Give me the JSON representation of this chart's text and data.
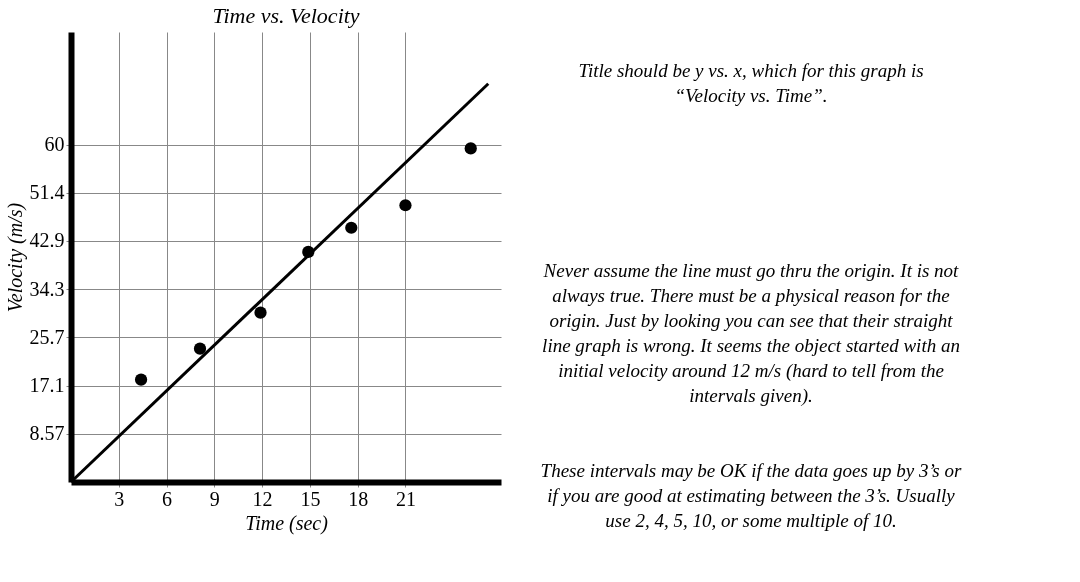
{
  "chart_data": {
    "type": "scatter",
    "title": "Time vs. Velocity",
    "xlabel": "Time (sec)",
    "ylabel": "Velocity (m/s)",
    "xlim": [
      0,
      27
    ],
    "ylim": [
      0,
      80
    ],
    "xticks": [
      3,
      6,
      9,
      12,
      15,
      18,
      21
    ],
    "yticks": [
      8.57,
      17.1,
      25.7,
      34.3,
      42.9,
      51.4,
      60
    ],
    "grid": true,
    "series": [
      {
        "color": "#000000",
        "marker": "circle",
        "x": [
          4.4,
          8.1,
          11.9,
          14.9,
          17.6,
          21.0,
          25.1
        ],
        "values": [
          18.2,
          23.7,
          30.1,
          40.9,
          45.2,
          49.2,
          59.3
        ]
      },
      {
        "type": "line",
        "color": "#000000",
        "line_style": "solid",
        "marker": "none",
        "x": [
          0,
          26.2
        ],
        "values": [
          0,
          70.8
        ]
      }
    ],
    "annotations": [
      "Title should be y vs. x, which for this graph is “Velocity vs. Time”.",
      "Never assume the line must go thru the origin.  It is not always true.  There must be a physical reason for the origin.  Just by looking you can see that their straight line graph is wrong.  It seems the object started with an initial velocity around 12 m/s (hard to tell from the intervals given).",
      "These intervals may be OK if the data goes up by 3’s or if you are good at estimating between the 3’s.  Usually use 2, 4, 5, 10, or some multiple of 10."
    ]
  }
}
